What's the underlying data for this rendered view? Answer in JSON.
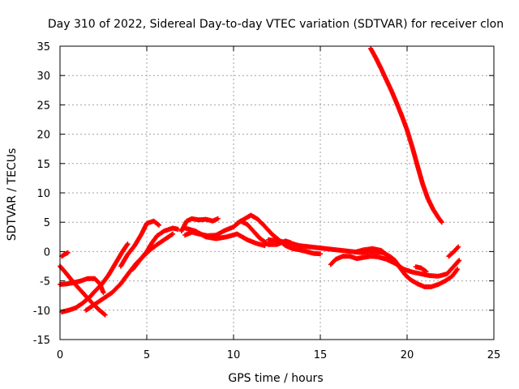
{
  "chart_data": {
    "type": "scatter",
    "title": "Day 310 of 2022, Sidereal Day-to-day VTEC variation (SDTVAR) for receiver clon",
    "xlabel": "GPS time / hours",
    "ylabel": "SDTVAR / TECUs",
    "xlim": [
      0,
      25
    ],
    "ylim": [
      -15,
      35
    ],
    "xticks": [
      0,
      5,
      10,
      15,
      20,
      25
    ],
    "yticks": [
      -15,
      -10,
      -5,
      0,
      5,
      10,
      15,
      20,
      25,
      30,
      35
    ],
    "xtick_labels": [
      "0",
      "5",
      "10",
      "15",
      "20",
      "25"
    ],
    "ytick_labels": [
      "-15",
      "-10",
      "-5",
      "0",
      "5",
      "10",
      "15",
      "20",
      "25",
      "30",
      "35"
    ],
    "grid": true,
    "marker_color": "#ff0000",
    "series": [
      {
        "name": "track-1",
        "points": [
          [
            0.1,
            -10.3
          ],
          [
            0.5,
            -10.0
          ],
          [
            0.9,
            -9.6
          ],
          [
            1.3,
            -8.8
          ],
          [
            1.7,
            -7.8
          ],
          [
            2.0,
            -6.8
          ],
          [
            2.4,
            -5.6
          ],
          [
            2.8,
            -4.0
          ],
          [
            3.2,
            -2.0
          ],
          [
            3.6,
            0.0
          ],
          [
            3.9,
            1.3
          ]
        ]
      },
      {
        "name": "track-2",
        "points": [
          [
            0.0,
            -2.5
          ],
          [
            0.3,
            -3.5
          ],
          [
            0.6,
            -4.6
          ],
          [
            1.0,
            -6.0
          ],
          [
            1.4,
            -7.3
          ],
          [
            1.8,
            -8.6
          ],
          [
            2.2,
            -9.8
          ],
          [
            2.6,
            -10.8
          ]
        ]
      },
      {
        "name": "track-3",
        "points": [
          [
            0.0,
            -5.6
          ],
          [
            0.4,
            -5.5
          ],
          [
            0.8,
            -5.3
          ],
          [
            1.2,
            -5.0
          ],
          [
            1.6,
            -4.6
          ],
          [
            2.0,
            -4.6
          ],
          [
            2.3,
            -5.5
          ],
          [
            2.5,
            -7.0
          ]
        ]
      },
      {
        "name": "track-4",
        "points": [
          [
            0.1,
            -0.8
          ],
          [
            0.3,
            -0.4
          ],
          [
            0.45,
            -0.2
          ]
        ]
      },
      {
        "name": "track-5",
        "points": [
          [
            1.5,
            -10.0
          ],
          [
            2.0,
            -9.0
          ],
          [
            2.5,
            -8.0
          ],
          [
            3.0,
            -7.0
          ],
          [
            3.5,
            -5.5
          ],
          [
            4.0,
            -3.5
          ],
          [
            4.4,
            -2.0
          ],
          [
            4.8,
            -0.8
          ],
          [
            5.2,
            0.3
          ],
          [
            5.6,
            1.2
          ],
          [
            6.0,
            2.0
          ],
          [
            6.5,
            3.0
          ]
        ]
      },
      {
        "name": "track-6",
        "points": [
          [
            3.5,
            -2.5
          ],
          [
            3.9,
            -0.5
          ],
          [
            4.3,
            1.0
          ],
          [
            4.7,
            3.0
          ],
          [
            5.0,
            4.8
          ],
          [
            5.4,
            5.2
          ],
          [
            5.7,
            4.5
          ]
        ]
      },
      {
        "name": "track-7",
        "points": [
          [
            4.2,
            -3.0
          ],
          [
            4.6,
            -1.5
          ],
          [
            5.0,
            0.0
          ],
          [
            5.3,
            1.5
          ],
          [
            5.6,
            2.7
          ],
          [
            6.0,
            3.5
          ],
          [
            6.5,
            4.0
          ],
          [
            6.8,
            3.8
          ]
        ]
      },
      {
        "name": "track-8",
        "points": [
          [
            7.0,
            3.5
          ],
          [
            7.3,
            5.2
          ],
          [
            7.6,
            5.6
          ],
          [
            8.0,
            5.4
          ],
          [
            8.4,
            5.5
          ],
          [
            8.8,
            5.2
          ],
          [
            9.1,
            5.6
          ]
        ]
      },
      {
        "name": "track-9",
        "points": [
          [
            7.2,
            2.8
          ],
          [
            7.6,
            3.3
          ],
          [
            8.0,
            3.0
          ],
          [
            8.5,
            2.7
          ],
          [
            9.0,
            2.8
          ],
          [
            9.5,
            3.6
          ],
          [
            10.0,
            4.2
          ],
          [
            10.4,
            5.2
          ],
          [
            10.8,
            4.6
          ],
          [
            11.2,
            3.3
          ],
          [
            11.5,
            2.3
          ],
          [
            12.0,
            1.2
          ],
          [
            12.5,
            1.2
          ],
          [
            13.0,
            1.8
          ],
          [
            13.3,
            1.5
          ]
        ]
      },
      {
        "name": "track-10",
        "points": [
          [
            7.2,
            4.0
          ],
          [
            7.8,
            3.5
          ],
          [
            8.4,
            2.5
          ],
          [
            9.0,
            2.2
          ],
          [
            9.6,
            2.5
          ],
          [
            10.2,
            3.0
          ],
          [
            10.8,
            2.0
          ],
          [
            11.3,
            1.4
          ],
          [
            11.8,
            1.0
          ]
        ]
      },
      {
        "name": "track-11",
        "points": [
          [
            10.2,
            4.8
          ],
          [
            10.6,
            5.5
          ],
          [
            11.0,
            6.2
          ],
          [
            11.4,
            5.5
          ],
          [
            11.8,
            4.3
          ],
          [
            12.2,
            3.0
          ],
          [
            12.6,
            2.0
          ],
          [
            13.0,
            1.0
          ],
          [
            13.4,
            0.5
          ],
          [
            13.8,
            0.3
          ],
          [
            14.2,
            0.0
          ],
          [
            14.6,
            -0.3
          ],
          [
            15.0,
            -0.4
          ]
        ]
      },
      {
        "name": "track-12",
        "points": [
          [
            12.0,
            2.0
          ],
          [
            12.6,
            1.8
          ],
          [
            13.2,
            1.5
          ],
          [
            13.8,
            1.0
          ],
          [
            14.4,
            0.8
          ],
          [
            15.0,
            0.6
          ],
          [
            15.6,
            0.4
          ],
          [
            16.2,
            0.2
          ],
          [
            16.8,
            0.0
          ],
          [
            17.4,
            -0.2
          ],
          [
            18.0,
            0.0
          ],
          [
            18.6,
            -0.2
          ],
          [
            19.0,
            -0.8
          ],
          [
            19.3,
            -1.5
          ],
          [
            19.6,
            -2.8
          ],
          [
            19.9,
            -4.0
          ],
          [
            20.2,
            -4.8
          ],
          [
            20.6,
            -5.5
          ],
          [
            21.0,
            -6.0
          ],
          [
            21.4,
            -6.0
          ],
          [
            21.8,
            -5.6
          ],
          [
            22.2,
            -5.0
          ],
          [
            22.6,
            -4.2
          ],
          [
            22.9,
            -3.0
          ]
        ]
      },
      {
        "name": "track-13",
        "points": [
          [
            15.6,
            -2.2
          ],
          [
            15.9,
            -1.3
          ],
          [
            16.3,
            -0.8
          ],
          [
            16.7,
            -0.8
          ],
          [
            17.1,
            -1.2
          ],
          [
            17.5,
            -1.0
          ],
          [
            17.9,
            -0.8
          ],
          [
            18.3,
            -0.9
          ],
          [
            18.8,
            -1.3
          ],
          [
            19.3,
            -2.0
          ],
          [
            19.8,
            -3.0
          ],
          [
            20.3,
            -3.5
          ],
          [
            20.8,
            -3.8
          ],
          [
            21.3,
            -4.1
          ],
          [
            21.8,
            -4.2
          ],
          [
            22.3,
            -3.8
          ],
          [
            22.7,
            -2.5
          ],
          [
            23.0,
            -1.5
          ]
        ]
      },
      {
        "name": "track-14",
        "points": [
          [
            17.0,
            -0.1
          ],
          [
            17.5,
            0.3
          ],
          [
            18.0,
            0.5
          ],
          [
            18.5,
            0.2
          ],
          [
            18.8,
            -0.5
          ],
          [
            19.1,
            -1.4
          ],
          [
            19.4,
            -2.0
          ]
        ]
      },
      {
        "name": "track-15",
        "points": [
          [
            20.5,
            -2.6
          ],
          [
            20.8,
            -2.8
          ],
          [
            21.1,
            -3.4
          ]
        ]
      },
      {
        "name": "track-16",
        "points": [
          [
            22.4,
            -0.8
          ],
          [
            22.7,
            0.0
          ],
          [
            22.95,
            0.8
          ]
        ]
      },
      {
        "name": "track-17",
        "points": [
          [
            17.9,
            34.6
          ],
          [
            18.2,
            33.0
          ],
          [
            18.5,
            31.2
          ],
          [
            18.8,
            29.3
          ],
          [
            19.1,
            27.4
          ],
          [
            19.4,
            25.3
          ],
          [
            19.7,
            23.1
          ],
          [
            20.0,
            20.7
          ],
          [
            20.3,
            17.8
          ],
          [
            20.6,
            14.6
          ],
          [
            20.9,
            11.5
          ],
          [
            21.2,
            9.0
          ],
          [
            21.5,
            7.2
          ],
          [
            21.8,
            5.8
          ],
          [
            22.0,
            5.0
          ]
        ]
      }
    ]
  }
}
